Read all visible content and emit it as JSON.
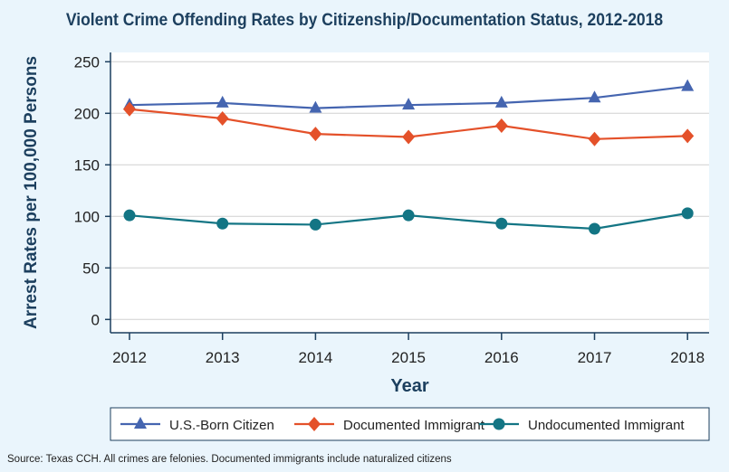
{
  "chart_data": {
    "type": "line",
    "title": "Violent Crime Offending Rates by Citizenship/Documentation Status, 2012-2018",
    "xlabel": "Year",
    "ylabel": "Arrest Rates per 100,000 Persons",
    "x": [
      "2012",
      "2013",
      "2014",
      "2015",
      "2016",
      "2017",
      "2018"
    ],
    "ylim": [
      0,
      250
    ],
    "yticks": [
      0,
      50,
      100,
      150,
      200,
      250
    ],
    "grid": true,
    "legend": "bottom",
    "series": [
      {
        "name": "U.S.-Born Citizen",
        "values": [
          208,
          210,
          205,
          208,
          210,
          215,
          226
        ],
        "color": "#4565b0",
        "marker": "triangle"
      },
      {
        "name": "Documented Immigrant",
        "values": [
          204,
          195,
          180,
          177,
          188,
          175,
          178
        ],
        "color": "#e4512a",
        "marker": "diamond"
      },
      {
        "name": "Undocumented Immigrant",
        "values": [
          101,
          93,
          92,
          101,
          93,
          88,
          103
        ],
        "color": "#137584",
        "marker": "circle"
      }
    ]
  },
  "source": "Source: Texas CCH. All crimes are felonies. Documented immigrants include naturalized citizens"
}
